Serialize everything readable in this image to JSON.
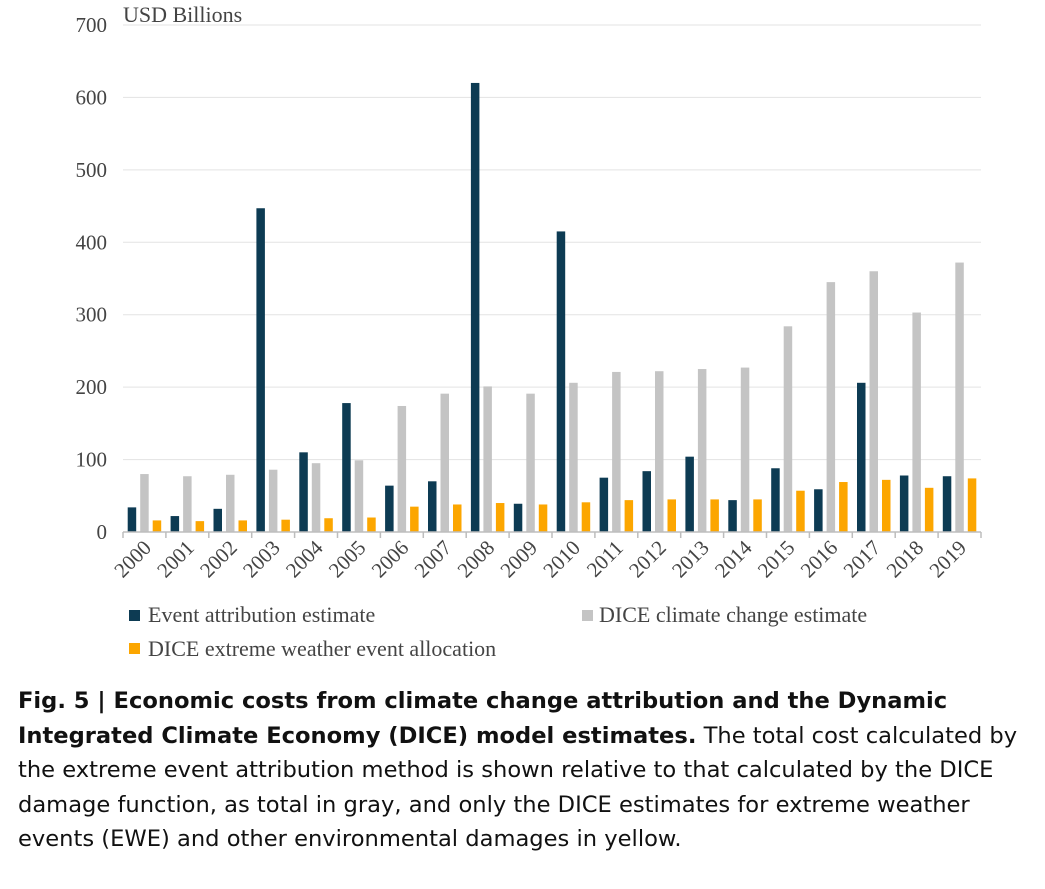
{
  "chart_data": {
    "type": "bar",
    "unit_label": "USD Billions",
    "categories": [
      "2000",
      "2001",
      "2002",
      "2003",
      "2004",
      "2005",
      "2006",
      "2007",
      "2008",
      "2009",
      "2010",
      "2011",
      "2012",
      "2013",
      "2014",
      "2015",
      "2016",
      "2017",
      "2018",
      "2019"
    ],
    "series": [
      {
        "name": "Event attribution estimate",
        "color": "#0d3b53",
        "values": [
          34,
          22,
          32,
          447,
          110,
          178,
          64,
          70,
          620,
          39,
          415,
          75,
          84,
          104,
          44,
          88,
          59,
          206,
          78,
          77
        ]
      },
      {
        "name": "DICE climate change estimate",
        "color": "#c4c4c4",
        "values": [
          80,
          77,
          79,
          86,
          95,
          99,
          174,
          191,
          201,
          191,
          206,
          221,
          222,
          225,
          227,
          284,
          345,
          360,
          303,
          372
        ]
      },
      {
        "name": "DICE extreme weather event allocation",
        "color": "#fca600",
        "values": [
          16,
          15,
          16,
          17,
          19,
          20,
          35,
          38,
          40,
          38,
          41,
          44,
          45,
          45,
          45,
          57,
          69,
          72,
          61,
          74
        ]
      }
    ],
    "ylim": [
      0,
      700
    ],
    "yticks": [
      "0",
      "100",
      "200",
      "300",
      "400",
      "500",
      "600",
      "700"
    ],
    "grid": true,
    "legend_position": "bottom"
  },
  "caption": {
    "label": "Fig. 5 | ",
    "title": "Economic costs from climate change attribution and the Dynamic Integrated Climate Economy (DICE) model estimates.",
    "body": " The total cost calculated by the extreme event attribution method is shown relative to that calculated by the DICE damage function, as total in gray, and only the DICE estimates for extreme weather events (EWE) and other environmental damages in yellow."
  }
}
